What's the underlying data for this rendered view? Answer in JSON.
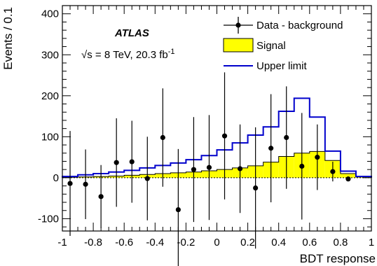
{
  "chart_data": {
    "type": "histogram",
    "xlabel": "BDT response",
    "ylabel": "Events / 0.1",
    "xlim": [
      -1,
      1
    ],
    "ylim": [
      -130,
      420
    ],
    "xticks": [
      -1,
      -0.8,
      -0.6,
      -0.4,
      -0.2,
      0,
      0.2,
      0.4,
      0.6,
      0.8,
      1
    ],
    "xtick_labels": [
      "-1",
      "-0.8",
      "-0.6",
      "-0.4",
      "-0.2",
      "0",
      "0.2",
      "0.4",
      "0.6",
      "0.8",
      "1"
    ],
    "yticks": [
      -100,
      0,
      100,
      200,
      300,
      400
    ],
    "ytick_labels": [
      "-100",
      "0",
      "100",
      "200",
      "300",
      "400"
    ],
    "bin_edges": [
      -1,
      -0.9,
      -0.8,
      -0.7,
      -0.6,
      -0.5,
      -0.4,
      -0.3,
      -0.2,
      -0.1,
      0,
      0.1,
      0.2,
      0.3,
      0.4,
      0.5,
      0.6,
      0.7,
      0.8,
      0.9,
      1
    ],
    "signal": [
      1,
      2,
      3,
      4,
      6,
      8,
      10,
      12,
      14,
      17,
      20,
      24,
      29,
      38,
      52,
      60,
      64,
      42,
      10,
      2
    ],
    "upper_limit": [
      3,
      7,
      10,
      14,
      18,
      24,
      30,
      36,
      44,
      54,
      68,
      85,
      104,
      124,
      162,
      194,
      148,
      65,
      16,
      3
    ],
    "data_points": [
      {
        "x": -0.95,
        "y": -14,
        "err": 128
      },
      {
        "x": -0.85,
        "y": -16,
        "err": 85
      },
      {
        "x": -0.75,
        "y": -46,
        "err": 77
      },
      {
        "x": -0.65,
        "y": 37,
        "err": 108
      },
      {
        "x": -0.55,
        "y": 39,
        "err": 100
      },
      {
        "x": -0.45,
        "y": -2,
        "err": 102
      },
      {
        "x": -0.35,
        "y": 98,
        "err": 120
      },
      {
        "x": -0.25,
        "y": -78,
        "err": 148
      },
      {
        "x": -0.15,
        "y": 20,
        "err": 128
      },
      {
        "x": -0.05,
        "y": 25,
        "err": 128
      },
      {
        "x": 0.05,
        "y": 102,
        "err": 155
      },
      {
        "x": 0.15,
        "y": 22,
        "err": 108
      },
      {
        "x": 0.25,
        "y": -25,
        "err": 148
      },
      {
        "x": 0.35,
        "y": 72,
        "err": 132
      },
      {
        "x": 0.45,
        "y": 98,
        "err": 125
      },
      {
        "x": 0.55,
        "y": 28,
        "err": 130
      },
      {
        "x": 0.65,
        "y": 50,
        "err": 80
      },
      {
        "x": 0.75,
        "y": 15,
        "err": 24
      },
      {
        "x": 0.85,
        "y": -3,
        "err": 3
      }
    ],
    "legend": {
      "position": "top-right",
      "entries": [
        "Data - background",
        "Signal",
        "Upper limit"
      ]
    },
    "annotation": {
      "experiment": "ATLAS",
      "energy_text": "√s = 8 TeV, 20.3 fb",
      "energy_superscript": "-1"
    },
    "colors": {
      "signal_fill": "#ffff00",
      "upper_limit": "#0000cc",
      "data": "#000000"
    }
  }
}
